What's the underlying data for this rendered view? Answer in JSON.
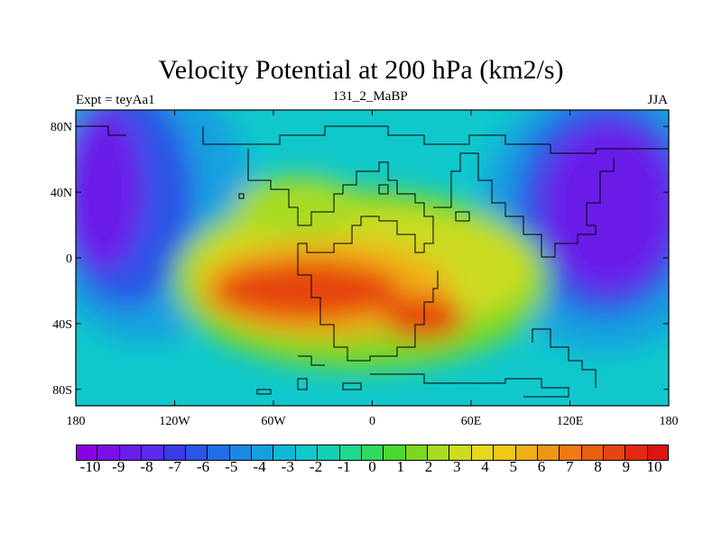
{
  "title": "Velocity Potential at 200 hPa (km2/s)",
  "left_label": "Expt = teyAa1",
  "center_label": "131_2_MaBP",
  "right_label": "JJA",
  "map": {
    "projection": "cylindrical-equidistant",
    "lon_range": [
      -180,
      180
    ],
    "lat_range": [
      -90,
      90
    ],
    "x_ticks": [
      {
        "value": -180,
        "label": "180"
      },
      {
        "value": -120,
        "label": "120W"
      },
      {
        "value": -60,
        "label": "60W"
      },
      {
        "value": 0,
        "label": "0"
      },
      {
        "value": 60,
        "label": "60E"
      },
      {
        "value": 120,
        "label": "120E"
      },
      {
        "value": 180,
        "label": "180"
      }
    ],
    "y_ticks": [
      {
        "value": 80,
        "label": "80N"
      },
      {
        "value": 40,
        "label": "40N"
      },
      {
        "value": 0,
        "label": "0"
      },
      {
        "value": -40,
        "label": "40S"
      },
      {
        "value": -80,
        "label": "80S"
      }
    ],
    "field_centers": [
      {
        "lon": -165,
        "lat": 40,
        "value": -10
      },
      {
        "lon": 145,
        "lat": 30,
        "value": -10
      },
      {
        "lon": -25,
        "lat": -25,
        "value": 10
      },
      {
        "lon": 20,
        "lat": -30,
        "value": 9
      }
    ]
  },
  "colorbar": {
    "labels": [
      "-10",
      "-9",
      "-8",
      "-7",
      "-6",
      "-5",
      "-4",
      "-3",
      "-2",
      "-1",
      "0",
      "1",
      "2",
      "3",
      "4",
      "5",
      "6",
      "7",
      "8",
      "9",
      "10"
    ],
    "colors": [
      "#8a00e6",
      "#7c0fe8",
      "#6a1ee9",
      "#5a2cea",
      "#3a3be6",
      "#2a55e6",
      "#1f6ee6",
      "#1a88e6",
      "#12a0e0",
      "#10b8d8",
      "#10c8cc",
      "#14d0b4",
      "#1ed890",
      "#30d860",
      "#4cd830",
      "#7cd820",
      "#a8dc20",
      "#ccdc20",
      "#e6d820",
      "#f0c818",
      "#f0b014",
      "#f09614",
      "#ee7a12",
      "#ea5e10",
      "#e64410",
      "#e22a10",
      "#de1410"
    ]
  }
}
